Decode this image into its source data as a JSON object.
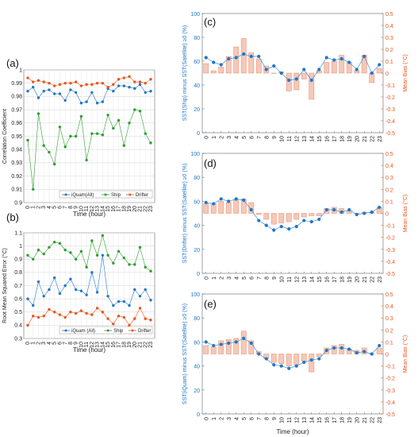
{
  "chart_data": [
    {
      "id": "a",
      "panel_label": "(a)",
      "type": "line",
      "x": [
        0,
        1,
        2,
        3,
        4,
        5,
        6,
        7,
        8,
        9,
        10,
        11,
        12,
        13,
        14,
        15,
        16,
        17,
        18,
        19,
        20,
        21,
        22,
        23
      ],
      "xlabel": "Time (hour)",
      "ylabel": "Correlation Coefficient",
      "ylim": [
        0.9,
        1.0
      ],
      "yticks": [
        "0.9",
        "0.91",
        "0.92",
        "0.93",
        "0.94",
        "0.95",
        "0.96",
        "0.97",
        "0.98",
        "0.99",
        "1"
      ],
      "grid": true,
      "legend": "bottom",
      "series": [
        {
          "name": "iQuam(All)",
          "color": "#1f77c9",
          "values": [
            0.984,
            0.987,
            0.979,
            0.984,
            0.985,
            0.982,
            0.982,
            0.977,
            0.985,
            0.983,
            0.975,
            0.976,
            0.983,
            0.975,
            0.976,
            0.986,
            0.984,
            0.988,
            0.988,
            0.987,
            0.986,
            0.989,
            0.983,
            0.984
          ]
        },
        {
          "name": "Ship",
          "color": "#2e9e2e",
          "values": [
            0.947,
            0.91,
            0.967,
            0.943,
            0.938,
            0.929,
            0.957,
            0.942,
            0.95,
            0.95,
            0.965,
            0.932,
            0.952,
            0.952,
            0.951,
            0.966,
            0.956,
            0.962,
            0.943,
            0.96,
            0.97,
            0.969,
            0.952,
            0.945
          ]
        },
        {
          "name": "Drifter",
          "color": "#e8561e",
          "values": [
            0.994,
            0.991,
            0.992,
            0.991,
            0.99,
            0.988,
            0.989,
            0.99,
            0.99,
            0.991,
            0.988,
            0.989,
            0.989,
            0.99,
            0.99,
            0.987,
            0.989,
            0.993,
            0.994,
            0.995,
            0.991,
            0.991,
            0.99,
            0.993
          ]
        }
      ]
    },
    {
      "id": "b",
      "panel_label": "(b)",
      "type": "line",
      "x": [
        0,
        1,
        2,
        3,
        4,
        5,
        6,
        7,
        8,
        9,
        10,
        11,
        12,
        13,
        14,
        15,
        16,
        17,
        18,
        19,
        20,
        21,
        22,
        23
      ],
      "xlabel": "Time (hour)",
      "ylabel": "Root Mean Squared Error (°C)",
      "ylim": [
        0.3,
        1.1
      ],
      "yticks": [
        "0.3",
        "0.4",
        "0.5",
        "0.6",
        "0.7",
        "0.8",
        "0.9",
        "1",
        "1.1"
      ],
      "grid": true,
      "legend": "bottom",
      "series": [
        {
          "name": "iQuam (All)",
          "color": "#1f77c9",
          "values": [
            0.6,
            0.55,
            0.73,
            0.62,
            0.67,
            0.76,
            0.64,
            0.7,
            0.75,
            0.67,
            0.66,
            0.63,
            0.8,
            0.65,
            0.93,
            0.62,
            0.55,
            0.58,
            0.58,
            0.55,
            0.67,
            0.62,
            0.67,
            0.59
          ]
        },
        {
          "name": "Ship",
          "color": "#2e9e2e",
          "values": [
            0.93,
            0.9,
            0.97,
            0.94,
            0.99,
            1.03,
            1.02,
            0.97,
            0.95,
            0.9,
            0.96,
            0.84,
            1.04,
            0.93,
            1.08,
            0.93,
            0.87,
            0.96,
            0.91,
            0.86,
            0.86,
            0.99,
            0.84,
            0.81
          ]
        },
        {
          "name": "Drifter",
          "color": "#e8561e",
          "values": [
            0.4,
            0.47,
            0.46,
            0.47,
            0.52,
            0.5,
            0.48,
            0.46,
            0.5,
            0.49,
            0.51,
            0.49,
            0.48,
            0.53,
            0.5,
            0.45,
            0.41,
            0.47,
            0.46,
            0.4,
            0.45,
            0.53,
            0.45,
            0.44
          ]
        }
      ]
    },
    {
      "id": "c",
      "panel_label": "(c)",
      "type": "bar",
      "x": [
        0,
        1,
        2,
        3,
        4,
        5,
        6,
        7,
        8,
        9,
        10,
        11,
        12,
        13,
        14,
        15,
        16,
        17,
        18,
        19,
        20,
        21,
        22,
        23
      ],
      "xlabel": "",
      "ylabel_left": "SST(Ship) minus SST(Satellite) ≥0  (%)",
      "ylabel_right": "Mean Bias  (°C)",
      "ylim_left": [
        0,
        100
      ],
      "ylim_right": [
        -0.5,
        0.5
      ],
      "yticks_left": [
        "0",
        "20",
        "40",
        "60",
        "80",
        "100"
      ],
      "yticks_right": [
        "-0.5",
        "-0.4",
        "-0.3",
        "-0.2",
        "-0.1",
        "0",
        "0.1",
        "0.2",
        "0.3",
        "0.4",
        "0.5"
      ],
      "percent_series": [
        63,
        59,
        57,
        62,
        63,
        66,
        64,
        64,
        53,
        56,
        50,
        44,
        45,
        53,
        44,
        53,
        63,
        61,
        62,
        59,
        53,
        64,
        50,
        57
      ],
      "bias_series": [
        0.08,
        0.02,
        0.05,
        0.14,
        0.22,
        0.29,
        0.17,
        0.12,
        0.06,
        0.0,
        0.01,
        -0.15,
        -0.14,
        -0.05,
        -0.22,
        0.02,
        0.09,
        0.1,
        0.15,
        0.09,
        0.02,
        0.15,
        -0.08,
        0.04
      ]
    },
    {
      "id": "d",
      "panel_label": "(d)",
      "type": "bar",
      "x": [
        0,
        1,
        2,
        3,
        4,
        5,
        6,
        7,
        8,
        9,
        10,
        11,
        12,
        13,
        14,
        15,
        16,
        17,
        18,
        19,
        20,
        21,
        22,
        23
      ],
      "xlabel": "",
      "ylabel_left": "SST(Drifter) minus SST(Satellite) ≥0  (%)",
      "ylabel_right": "Mean Bias  (°C)",
      "ylim_left": [
        0,
        100
      ],
      "ylim_right": [
        -0.5,
        0.5
      ],
      "yticks_left": [
        "0",
        "20",
        "40",
        "60",
        "80",
        "100"
      ],
      "yticks_right": [
        "-0.5",
        "-0.4",
        "-0.3",
        "-0.2",
        "-0.1",
        "0",
        "0.1",
        "0.2",
        "0.3",
        "0.4",
        "0.5"
      ],
      "percent_series": [
        59,
        58,
        62,
        60,
        62,
        61,
        53,
        44,
        40,
        36,
        39,
        37,
        39,
        44,
        43,
        45,
        53,
        53,
        51,
        53,
        49,
        50,
        51,
        55
      ],
      "bias_series": [
        0.08,
        0.08,
        0.1,
        0.09,
        0.11,
        0.12,
        0.09,
        -0.01,
        -0.05,
        -0.09,
        -0.08,
        -0.07,
        -0.05,
        -0.03,
        -0.02,
        -0.02,
        0.04,
        0.05,
        0.04,
        0.02,
        0.0,
        0.01,
        0.01,
        0.05
      ]
    },
    {
      "id": "e",
      "panel_label": "(e)",
      "type": "bar",
      "x": [
        0,
        1,
        2,
        3,
        4,
        5,
        6,
        7,
        8,
        9,
        10,
        11,
        12,
        13,
        14,
        15,
        16,
        17,
        18,
        19,
        20,
        21,
        22,
        23
      ],
      "xlabel": "Time (hour)",
      "ylabel_left": "SST(iQuam) minus SST(Satellite) ≥0  (%)",
      "ylabel_right": "Mean Bias  (°C)",
      "ylim_left": [
        0,
        100
      ],
      "ylim_right": [
        -0.5,
        0.5
      ],
      "yticks_left": [
        "0",
        "20",
        "40",
        "60",
        "80",
        "100"
      ],
      "yticks_right": [
        "-0.5",
        "-0.4",
        "-0.3",
        "-0.2",
        "-0.1",
        "0",
        "0.1",
        "0.2",
        "0.3",
        "0.4",
        "0.5"
      ],
      "percent_series": [
        60,
        57,
        58,
        59,
        60,
        63,
        59,
        50,
        46,
        41,
        40,
        38,
        40,
        43,
        45,
        46,
        53,
        55,
        55,
        54,
        51,
        52,
        50,
        57
      ],
      "bias_series": [
        0.07,
        0.06,
        0.11,
        0.12,
        0.13,
        0.19,
        0.11,
        0.02,
        -0.04,
        -0.07,
        -0.08,
        -0.1,
        -0.09,
        -0.06,
        -0.15,
        -0.02,
        0.05,
        0.07,
        0.08,
        0.04,
        0.03,
        0.05,
        0.0,
        0.05
      ]
    }
  ]
}
